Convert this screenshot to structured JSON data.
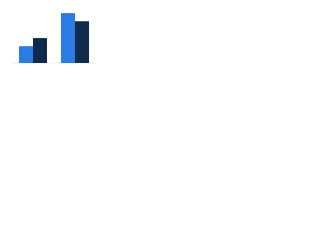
{
  "chart_data": {
    "type": "bar",
    "categories": [
      null,
      null
    ],
    "series": [
      {
        "color": "#2a7be4",
        "values": [
          29,
          86
        ]
      },
      {
        "color": "#0f2a4a",
        "values": [
          43,
          72
        ]
      }
    ],
    "ylim": [
      0,
      100
    ]
  }
}
